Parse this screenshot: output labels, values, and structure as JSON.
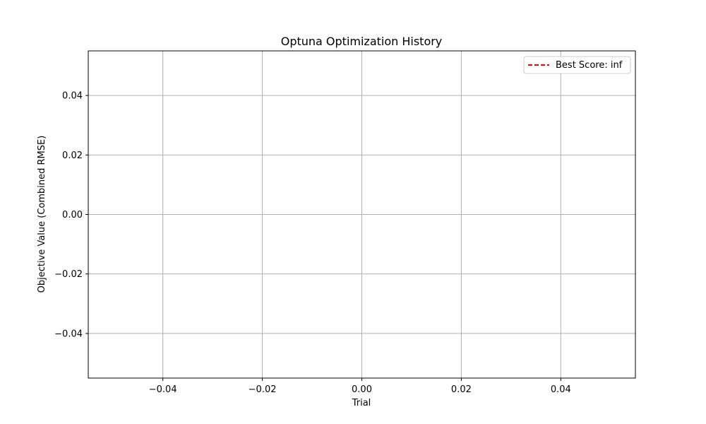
{
  "chart_data": {
    "type": "line",
    "title": "Optuna Optimization History",
    "xlabel": "Trial",
    "ylabel": "Objective Value (Combined RMSE)",
    "xlim": [
      -0.055,
      0.055
    ],
    "ylim": [
      -0.055,
      0.055
    ],
    "x_ticks": [
      -0.04,
      -0.02,
      0.0,
      0.02,
      0.04
    ],
    "x_tick_labels": [
      "−0.04",
      "−0.02",
      "0.00",
      "0.02",
      "0.04"
    ],
    "y_ticks": [
      0.04,
      0.02,
      0.0,
      -0.02,
      -0.04
    ],
    "y_tick_labels": [
      "0.04",
      "0.02",
      "0.00",
      "−0.02",
      "−0.04"
    ],
    "grid": true,
    "legend_position": "top-right",
    "series": [
      {
        "name": "Best Score: inf",
        "style": "dashed",
        "color": "#ff0000",
        "x": [],
        "y": []
      }
    ]
  }
}
